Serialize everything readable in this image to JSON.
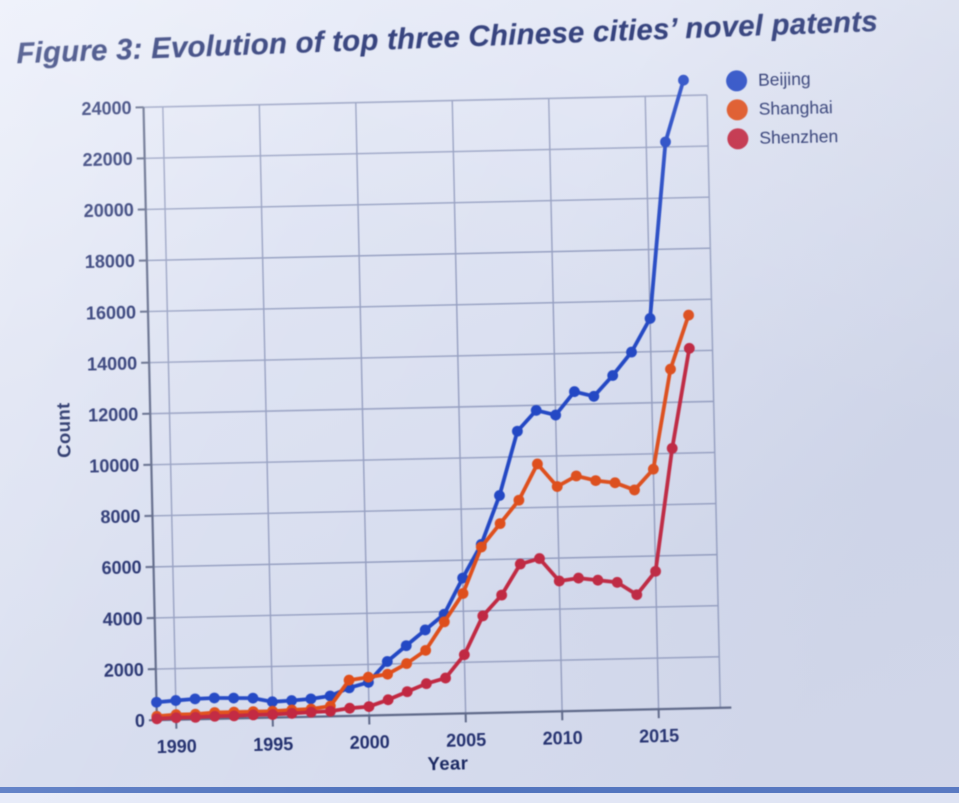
{
  "title": "Figure 3: Evolution of top three Chinese cities’ novel patents",
  "chart_data": {
    "type": "line",
    "title": "Figure 3: Evolution of top three Chinese cities’ novel patents",
    "xlabel": "Year",
    "ylabel": "Count",
    "grid": true,
    "legend_position": "top-right",
    "xlim": [
      1988.8,
      2018.2
    ],
    "ylim": [
      0,
      24000
    ],
    "x_ticks": [
      1990,
      1995,
      2000,
      2005,
      2010,
      2015
    ],
    "y_ticks": [
      0,
      2000,
      4000,
      6000,
      8000,
      10000,
      12000,
      14000,
      16000,
      18000,
      20000,
      22000,
      24000
    ],
    "years": [
      1989,
      1990,
      1991,
      1992,
      1993,
      1994,
      1995,
      1996,
      1997,
      1998,
      1999,
      2000,
      2001,
      2002,
      2003,
      2004,
      2005,
      2006,
      2007,
      2008,
      2009,
      2010,
      2011,
      2012,
      2013,
      2014,
      2015,
      2016,
      2017
    ],
    "series": [
      {
        "name": "Beijing",
        "color": "#2247c4",
        "values": [
          700,
          750,
          800,
          820,
          800,
          780,
          620,
          650,
          700,
          800,
          1100,
          1300,
          2100,
          2700,
          3300,
          3900,
          5300,
          6600,
          8500,
          11000,
          11800,
          11600,
          12500,
          12300,
          13100,
          14000,
          15300,
          22200,
          24600
        ]
      },
      {
        "name": "Shanghai",
        "color": "#e04e1a",
        "values": [
          150,
          200,
          200,
          250,
          250,
          250,
          250,
          280,
          300,
          400,
          1400,
          1500,
          1600,
          2000,
          2500,
          3600,
          4700,
          6500,
          7400,
          8300,
          9700,
          8800,
          9200,
          9000,
          8900,
          8600,
          9400,
          13300,
          15400
        ]
      },
      {
        "name": "Shenzhen",
        "color": "#c22740",
        "values": [
          50,
          80,
          80,
          100,
          100,
          120,
          120,
          150,
          180,
          200,
          300,
          350,
          600,
          900,
          1200,
          1400,
          2300,
          3800,
          4600,
          5800,
          6000,
          5100,
          5200,
          5100,
          5000,
          4500,
          5400,
          10200,
          14100
        ]
      }
    ]
  },
  "colors": {
    "background": "#dce1f1",
    "gridline": "#949ec0",
    "axis": "#5d6787",
    "tick_text": "#222f6e",
    "title_text": "#1a296c",
    "bottom_strip": "#5577c2"
  }
}
